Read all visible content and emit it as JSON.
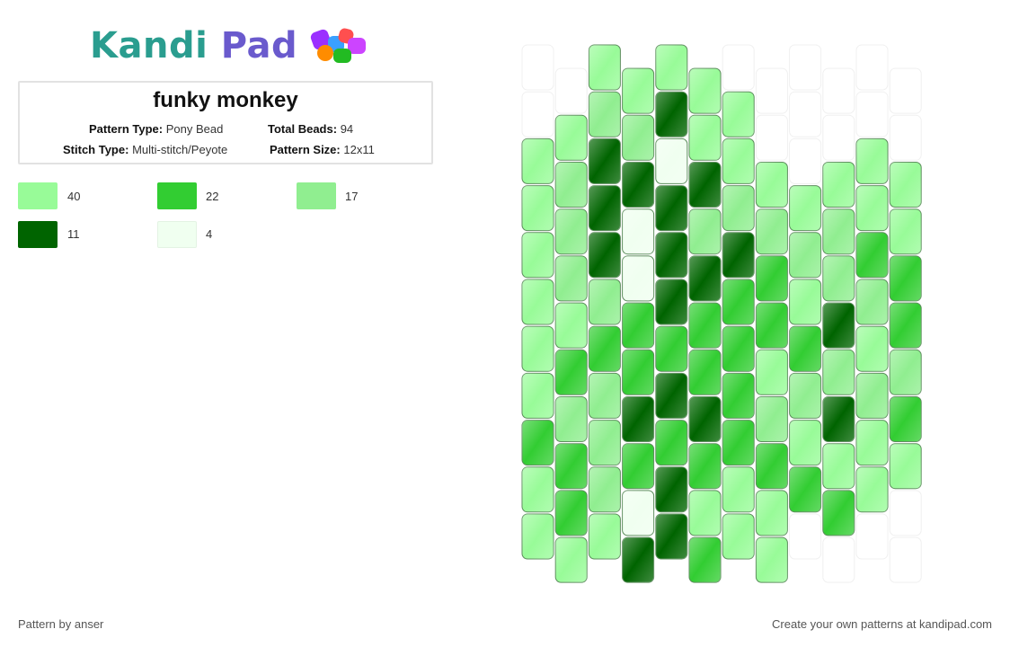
{
  "logo": {
    "part1": "Kandi",
    "part2": "Pad"
  },
  "pattern": {
    "title": "funky monkey",
    "type_label": "Pattern Type:",
    "type_value": "Pony Bead",
    "beads_label": "Total Beads:",
    "beads_value": "94",
    "stitch_label": "Stitch Type:",
    "stitch_value": "Multi-stitch/Peyote",
    "size_label": "Pattern Size:",
    "size_value": "12x11"
  },
  "palette": [
    {
      "color": "#98fb98",
      "count": "40"
    },
    {
      "color": "#32cd32",
      "count": "22"
    },
    {
      "color": "#90ee90",
      "count": "17"
    },
    {
      "color": "#006400",
      "count": "11"
    },
    {
      "color": "#f0fff0",
      "count": "4"
    }
  ],
  "bead_grid": {
    "columns": 12,
    "column_offsets": [
      4,
      3,
      2,
      1,
      0,
      1,
      0,
      1,
      2,
      3,
      4,
      5
    ],
    "cells": [
      "..AAAA......",
      ".ACCDAA.....",
      "ACDDEDAA.AAA",
      "ACDEDCCCACAA",
      "ACDEDDDBCCBB",
      "AACBDBBBADCB",
      "ABBBBBBABCAC",
      "ACCDDDBCCDCB",
      "BBCBBBBBAAAA",
      "ABCEDAAABBA.",
      "AAADDBAA....",
      "..........."
    ]
  },
  "credit": "Pattern by anser",
  "cta": "Create your own patterns at kandipad.com"
}
